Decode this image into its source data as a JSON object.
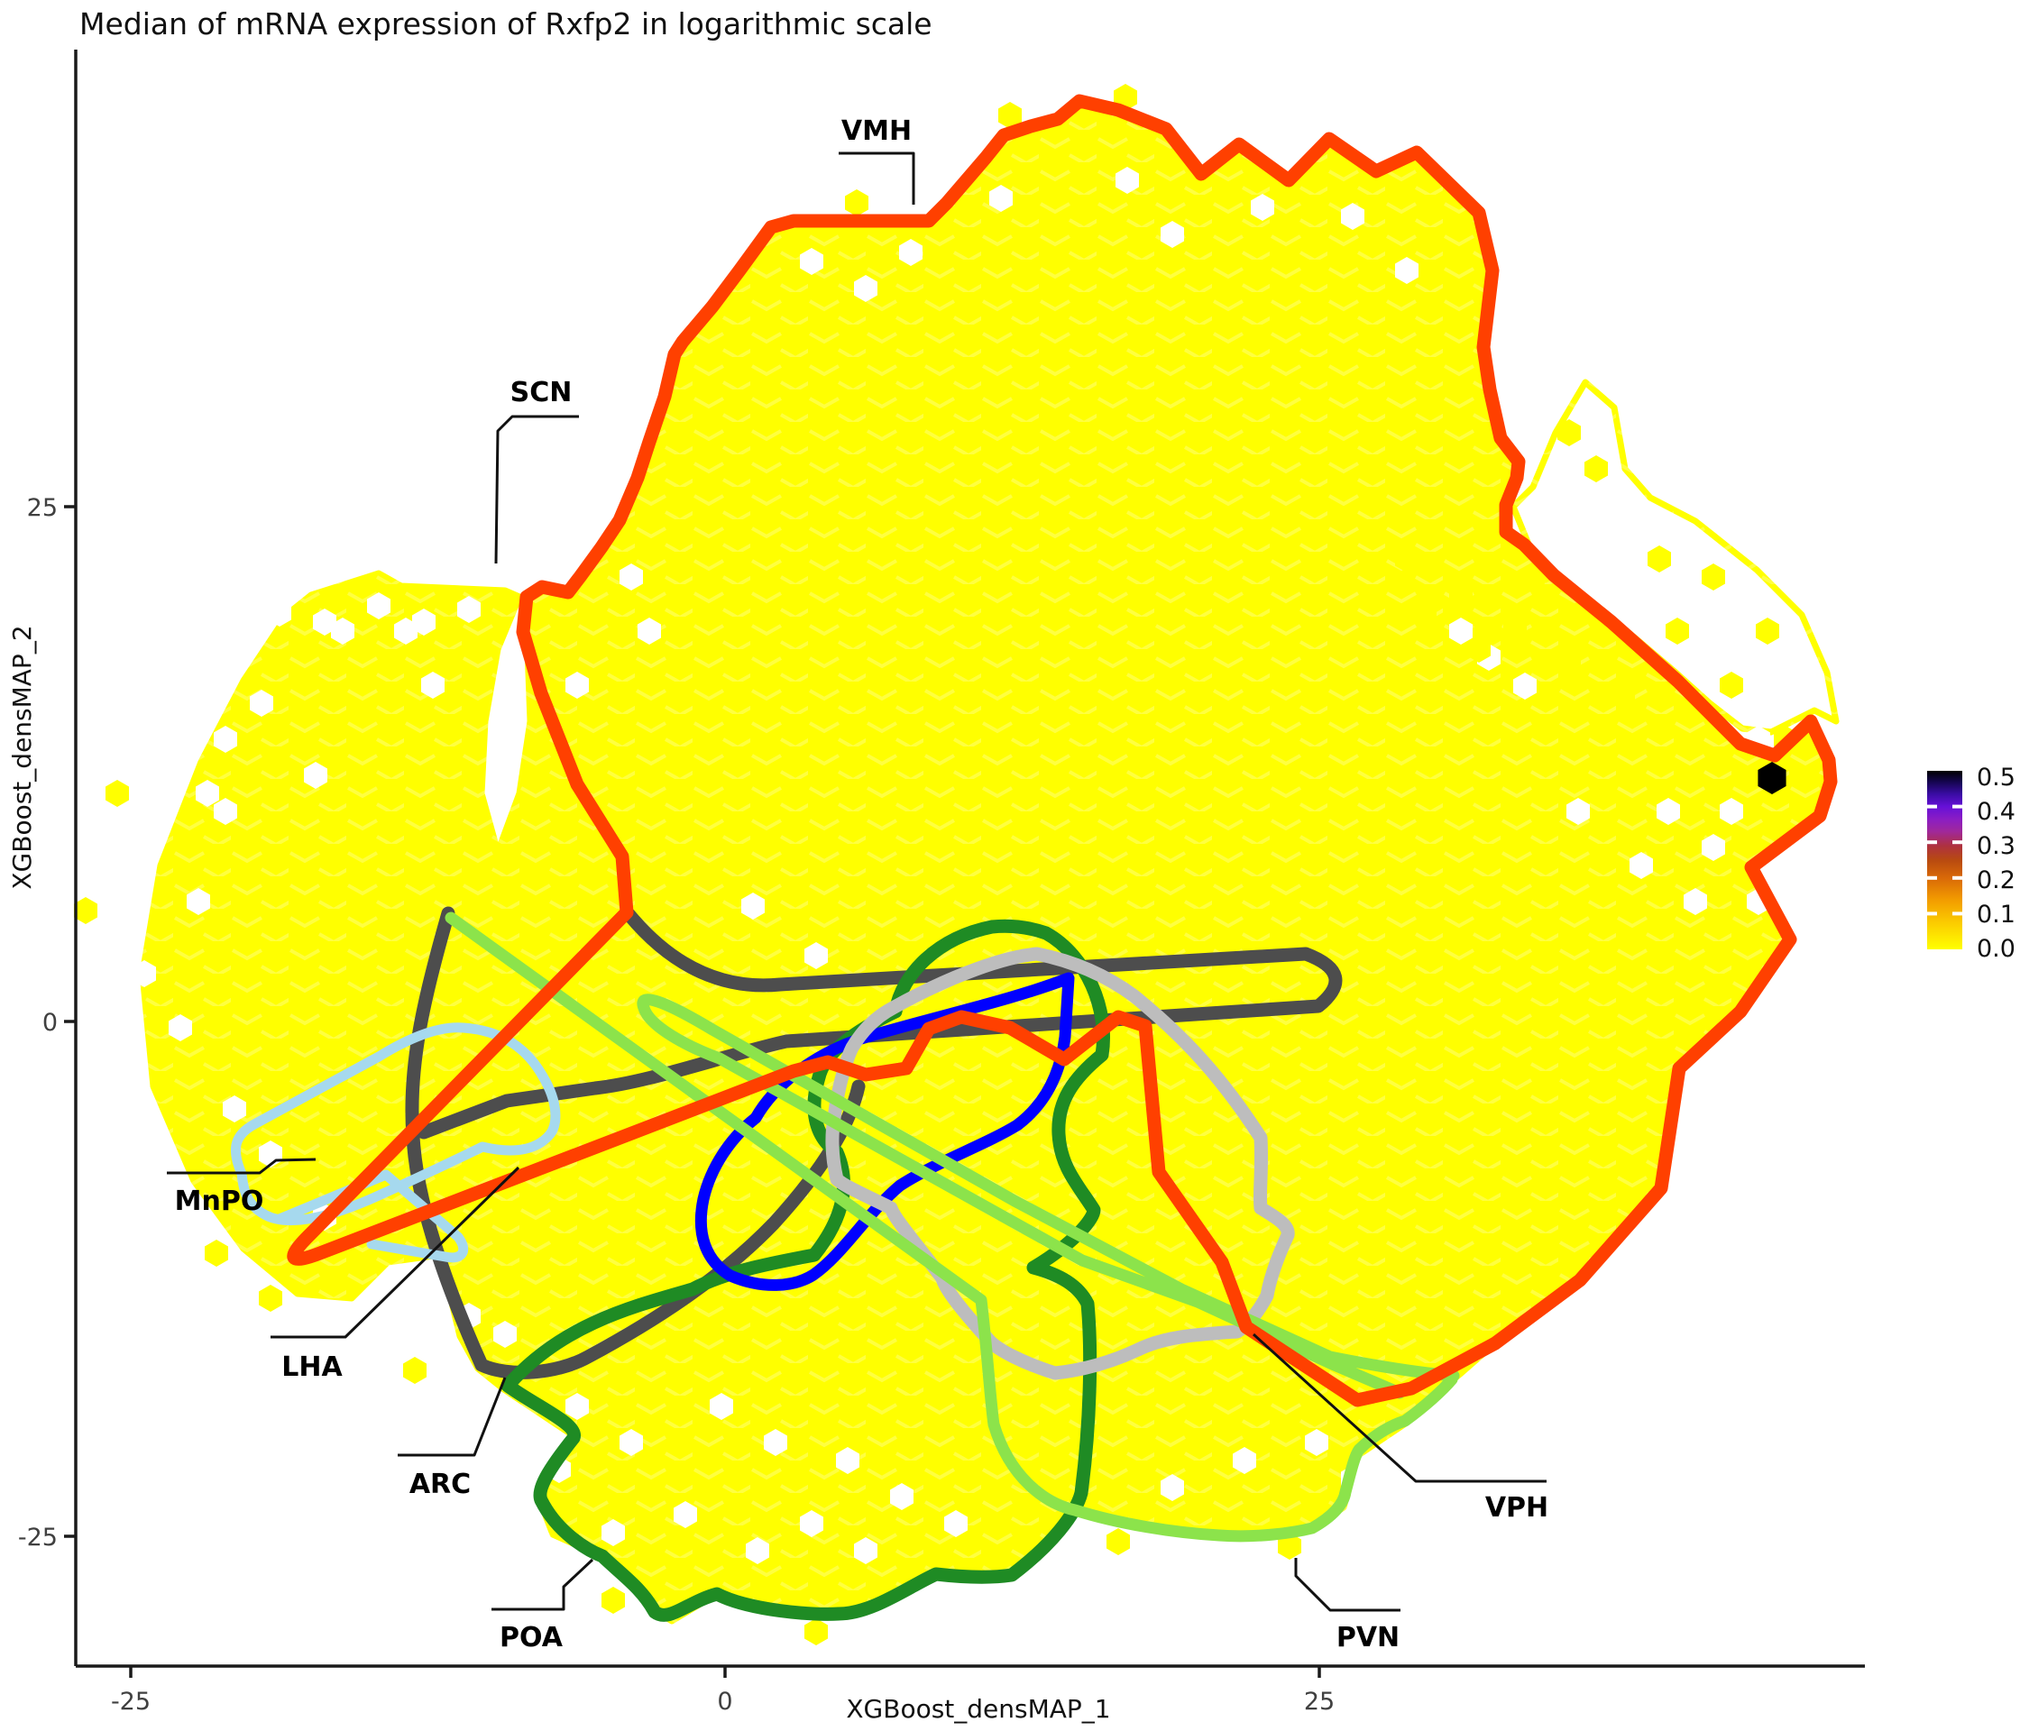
{
  "title": "Median of mRNA expression of Rxfp2 in logarithmic scale",
  "chart_data": {
    "type": "hexbin_density_map",
    "xlabel": "XGBoost_densMAP_1",
    "ylabel": "XGBoost_densMAP_2",
    "x_ticks": [
      "-25",
      "0",
      "25"
    ],
    "y_ticks": [
      "25",
      "0",
      "-25"
    ],
    "x_range_approx": [
      -27,
      48
    ],
    "y_range_approx": [
      -31,
      47
    ],
    "bin_fill_color": "#FFFF00",
    "background_bin_value": 0.0,
    "special_bins": [
      {
        "x": 44,
        "y": 12,
        "value": 0.5,
        "color": "#000000"
      }
    ],
    "colorbar": {
      "ticks": [
        "0.5",
        "0.4",
        "0.3",
        "0.2",
        "0.1",
        "0.0"
      ],
      "stops": [
        {
          "o": 0.0,
          "c": "#000000"
        },
        {
          "o": 0.06,
          "c": "#14054E"
        },
        {
          "o": 0.13,
          "c": "#3A0CA3"
        },
        {
          "o": 0.2,
          "c": "#6610D8"
        },
        {
          "o": 0.27,
          "c": "#8A1DC4"
        },
        {
          "o": 0.34,
          "c": "#A0289A"
        },
        {
          "o": 0.42,
          "c": "#AE3140"
        },
        {
          "o": 0.5,
          "c": "#B84A10"
        },
        {
          "o": 0.6,
          "c": "#D96908"
        },
        {
          "o": 0.72,
          "c": "#F29B00"
        },
        {
          "o": 0.85,
          "c": "#FBCB00"
        },
        {
          "o": 1.0,
          "c": "#FFFF00"
        }
      ]
    },
    "outlines": [
      {
        "name": "VMH",
        "color": "#FF4000"
      },
      {
        "name": "SCN",
        "color": "#FF4000"
      },
      {
        "name": "MnPO",
        "color": "#A6D9EE"
      },
      {
        "name": "LHA",
        "color": "#4D4D4D"
      },
      {
        "name": "ARC",
        "color": "#0000FF"
      },
      {
        "name": "POA",
        "color": "#1F8B24"
      },
      {
        "name": "PVN",
        "color": "#8CE34B"
      },
      {
        "name": "VPH",
        "color": "#BDBDBD"
      }
    ]
  },
  "annotations": [
    {
      "label": "VMH"
    },
    {
      "label": "SCN"
    },
    {
      "label": "MnPO"
    },
    {
      "label": "LHA"
    },
    {
      "label": "ARC"
    },
    {
      "label": "POA"
    },
    {
      "label": "PVN"
    },
    {
      "label": "VPH"
    }
  ]
}
